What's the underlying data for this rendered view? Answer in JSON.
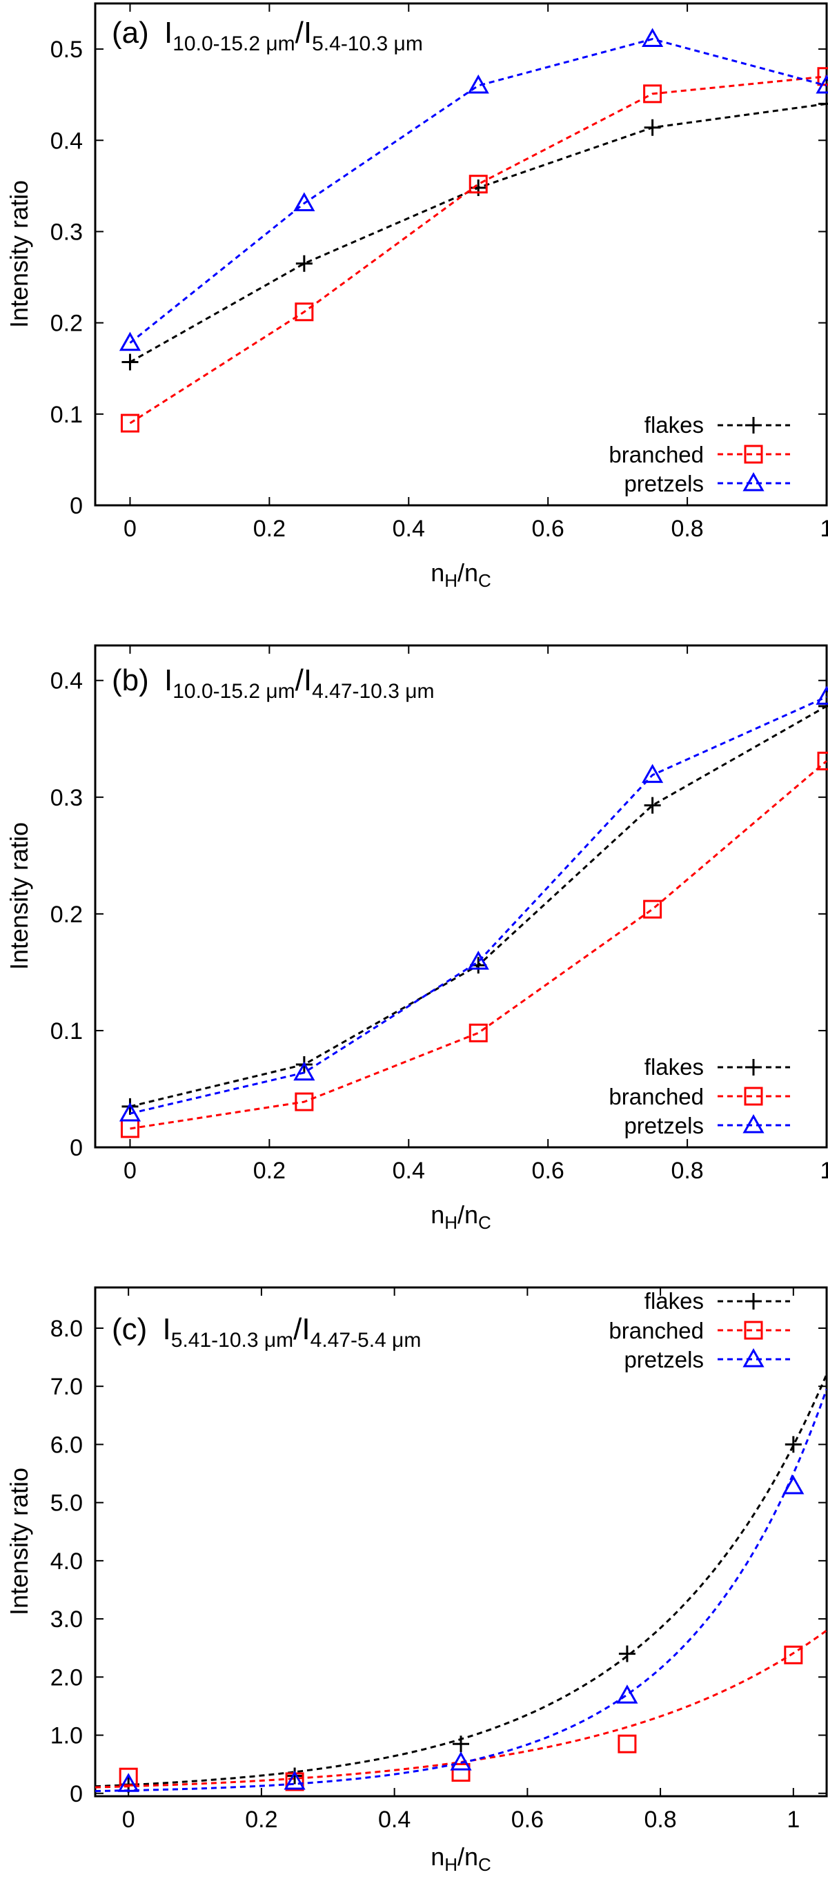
{
  "chart_data": [
    {
      "type": "line",
      "panel": "(a)",
      "title": {
        "label": "(a)",
        "num_main": "I",
        "num_sub": "10.0-15.2 μm",
        "sep": "/",
        "den_main": "I",
        "den_sub": "5.4-10.3 μm"
      },
      "xlabel": {
        "main": "n",
        "sub1": "H",
        "mid": "/n",
        "sub2": "C"
      },
      "ylabel": "Intensity ratio",
      "xlim": [
        -0.05,
        1.0
      ],
      "ylim": [
        0,
        0.55
      ],
      "xticks": [
        {
          "value": 0,
          "label": "0"
        },
        {
          "value": 0.2,
          "label": "0.2"
        },
        {
          "value": 0.4,
          "label": "0.4"
        },
        {
          "value": 0.6,
          "label": "0.6"
        },
        {
          "value": 0.8,
          "label": "0.8"
        },
        {
          "value": 1,
          "label": "1"
        }
      ],
      "yticks": [
        {
          "value": 0,
          "label": "0"
        },
        {
          "value": 0.1,
          "label": "0.1"
        },
        {
          "value": 0.2,
          "label": "0.2"
        },
        {
          "value": 0.3,
          "label": "0.3"
        },
        {
          "value": 0.4,
          "label": "0.4"
        },
        {
          "value": 0.5,
          "label": "0.5"
        }
      ],
      "legend_position": "bottom-right",
      "series": [
        {
          "name": "flakes",
          "color": "#000000",
          "marker": "plus",
          "x": [
            0,
            0.25,
            0.5,
            0.75,
            1.0
          ],
          "y": [
            0.157,
            0.265,
            0.348,
            0.414,
            0.44
          ]
        },
        {
          "name": "branched",
          "color": "#ff0000",
          "marker": "square",
          "x": [
            0,
            0.25,
            0.5,
            0.75,
            1.0
          ],
          "y": [
            0.09,
            0.212,
            0.352,
            0.451,
            0.47
          ]
        },
        {
          "name": "pretzels",
          "color": "#0000ff",
          "marker": "triangle",
          "x": [
            0,
            0.25,
            0.5,
            0.75,
            1.0
          ],
          "y": [
            0.178,
            0.331,
            0.46,
            0.511,
            0.46
          ]
        }
      ]
    },
    {
      "type": "line",
      "panel": "(b)",
      "title": {
        "label": "(b)",
        "num_main": "I",
        "num_sub": "10.0-15.2 μm",
        "sep": "/",
        "den_main": "I",
        "den_sub": "4.47-10.3 μm"
      },
      "xlabel": {
        "main": "n",
        "sub1": "H",
        "mid": "/n",
        "sub2": "C"
      },
      "ylabel": "Intensity ratio",
      "xlim": [
        -0.05,
        1.0
      ],
      "ylim": [
        0,
        0.43
      ],
      "xticks": [
        {
          "value": 0,
          "label": "0"
        },
        {
          "value": 0.2,
          "label": "0.2"
        },
        {
          "value": 0.4,
          "label": "0.4"
        },
        {
          "value": 0.6,
          "label": "0.6"
        },
        {
          "value": 0.8,
          "label": "0.8"
        },
        {
          "value": 1,
          "label": "1"
        }
      ],
      "yticks": [
        {
          "value": 0,
          "label": "0"
        },
        {
          "value": 0.1,
          "label": "0.1"
        },
        {
          "value": 0.2,
          "label": "0.2"
        },
        {
          "value": 0.3,
          "label": "0.3"
        },
        {
          "value": 0.4,
          "label": "0.4"
        }
      ],
      "legend_position": "bottom-right",
      "series": [
        {
          "name": "flakes",
          "color": "#000000",
          "marker": "plus",
          "x": [
            0,
            0.25,
            0.5,
            0.75,
            1.0
          ],
          "y": [
            0.035,
            0.071,
            0.156,
            0.293,
            0.378
          ]
        },
        {
          "name": "branched",
          "color": "#ff0000",
          "marker": "square",
          "x": [
            0,
            0.25,
            0.5,
            0.75,
            1.0
          ],
          "y": [
            0.016,
            0.039,
            0.098,
            0.204,
            0.331
          ]
        },
        {
          "name": "pretzels",
          "color": "#0000ff",
          "marker": "triangle",
          "x": [
            0,
            0.25,
            0.5,
            0.75,
            1.0
          ],
          "y": [
            0.029,
            0.064,
            0.159,
            0.319,
            0.386
          ]
        }
      ]
    },
    {
      "type": "scatter",
      "panel": "(c)",
      "title": {
        "label": "(c)",
        "num_main": "I",
        "num_sub": "5.41-10.3 μm",
        "sep": "/",
        "den_main": "I",
        "den_sub": "4.47-5.4 μm"
      },
      "xlabel": {
        "main": "n",
        "sub1": "H",
        "mid": "/n",
        "sub2": "C"
      },
      "ylabel": "Intensity ratio",
      "xlim": [
        -0.05,
        1.05
      ],
      "ylim": [
        -0.05,
        8.7
      ],
      "xticks": [
        {
          "value": 0,
          "label": "0"
        },
        {
          "value": 0.2,
          "label": "0.2"
        },
        {
          "value": 0.4,
          "label": "0.4"
        },
        {
          "value": 0.6,
          "label": "0.6"
        },
        {
          "value": 0.8,
          "label": "0.8"
        },
        {
          "value": 1,
          "label": "1"
        }
      ],
      "yticks": [
        {
          "value": 0,
          "label": "0"
        },
        {
          "value": 1,
          "label": "1.0"
        },
        {
          "value": 2,
          "label": "2.0"
        },
        {
          "value": 3,
          "label": "3.0"
        },
        {
          "value": 4,
          "label": "4.0"
        },
        {
          "value": 5,
          "label": "5.0"
        },
        {
          "value": 6,
          "label": "6.0"
        },
        {
          "value": 7,
          "label": "7.0"
        },
        {
          "value": 8,
          "label": "8.0"
        }
      ],
      "legend_position": "top-right",
      "fit": "exponential",
      "series": [
        {
          "name": "flakes",
          "color": "#000000",
          "marker": "plus",
          "x": [
            0,
            0.25,
            0.5,
            0.75,
            1.0
          ],
          "y": [
            0.15,
            0.3,
            0.85,
            2.4,
            6.0
          ],
          "fit_a": 0.145,
          "fit_b": 3.72
        },
        {
          "name": "branched",
          "color": "#ff0000",
          "marker": "square",
          "x": [
            0,
            0.25,
            0.5,
            0.75,
            1.0
          ],
          "y": [
            0.28,
            0.2,
            0.36,
            0.85,
            2.38
          ],
          "fit_a": 0.12,
          "fit_b": 3.0
        },
        {
          "name": "pretzels",
          "color": "#0000ff",
          "marker": "triangle",
          "x": [
            0,
            0.25,
            0.5,
            0.75,
            1.0
          ],
          "y": [
            0.16,
            0.2,
            0.53,
            1.68,
            5.28
          ],
          "fit_a": 0.05,
          "fit_b": 4.7
        }
      ]
    }
  ]
}
